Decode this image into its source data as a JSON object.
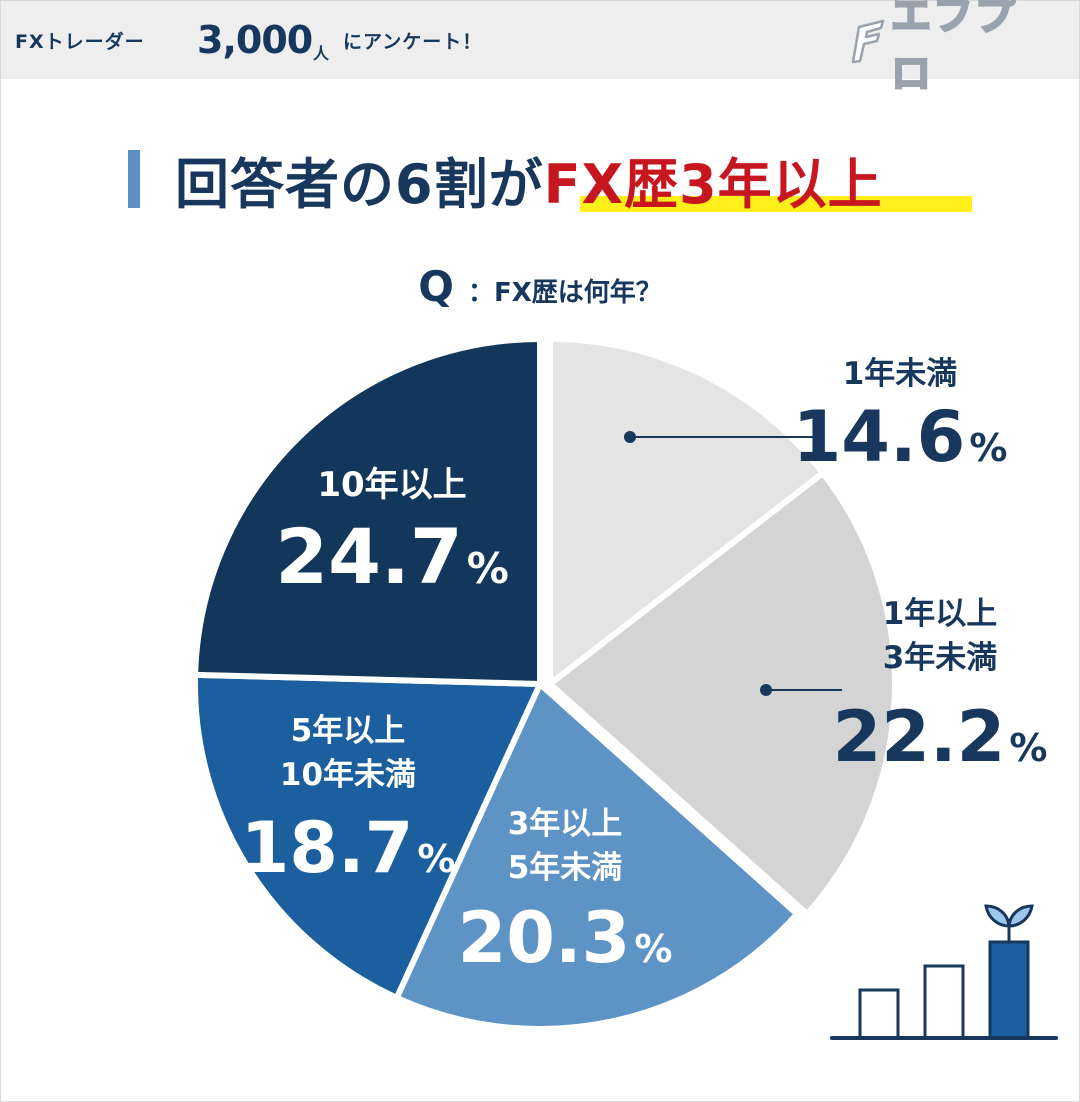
{
  "header": {
    "left_text": "FXトレーダー",
    "count": "3,000",
    "count_unit": "人",
    "right_text": "にアンケート！",
    "logo_text": "エフプロ"
  },
  "title": {
    "prefix": "回答者の6割が",
    "highlight": "FX歴3年以上"
  },
  "question": {
    "mark": "Q",
    "text": "：FX歴は何年？"
  },
  "chart_data": {
    "type": "pie",
    "title": "Q：FX歴は何年？",
    "start": "12 o'clock",
    "direction": "clockwise",
    "slices": [
      {
        "label_lines": [
          "1年未満"
        ],
        "value": 14.6,
        "value_text": "14.6",
        "unit": "%",
        "color": "#e4e4e4",
        "exploded": true
      },
      {
        "label_lines": [
          "1年以上",
          "3年未満"
        ],
        "value": 22.2,
        "value_text": "22.2",
        "unit": "%",
        "color": "#d4d4d4",
        "exploded": true
      },
      {
        "label_lines": [
          "3年以上",
          "5年未満"
        ],
        "value": 20.3,
        "value_text": "20.3",
        "unit": "%",
        "color": "#5e93c5"
      },
      {
        "label_lines": [
          "5年以上",
          "10年未満"
        ],
        "value": 18.7,
        "value_text": "18.7",
        "unit": "%",
        "color": "#1b5f9f"
      },
      {
        "label_lines": [
          "10年以上"
        ],
        "value": 24.7,
        "value_text": "24.7",
        "unit": "%",
        "color": "#13375b"
      }
    ]
  },
  "colors": {
    "navy": "#17375d",
    "red": "#c8161e",
    "highlight": "#ffef1a",
    "accent_bar": "#5b8fc1"
  }
}
